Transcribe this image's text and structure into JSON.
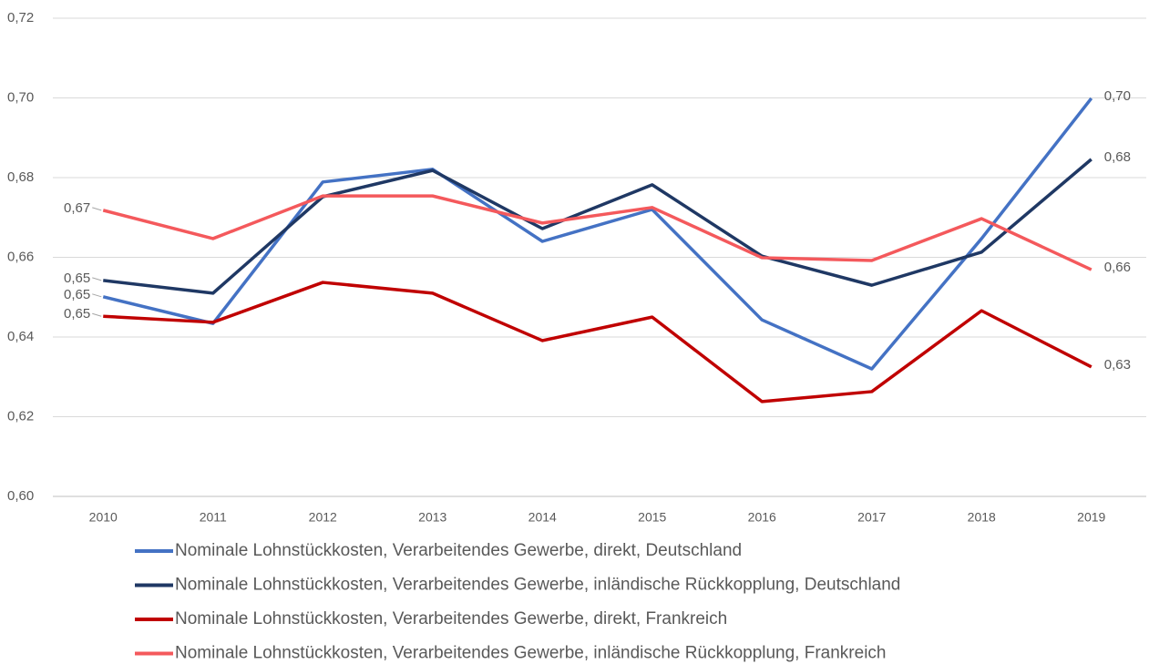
{
  "chart_data": {
    "type": "line",
    "categories": [
      "2010",
      "2011",
      "2012",
      "2013",
      "2014",
      "2015",
      "2016",
      "2017",
      "2018",
      "2019"
    ],
    "series": [
      {
        "name": "Nominale Lohnstückkosten, Verarbeitendes Gewerbe, direkt, Deutschland",
        "color": "#4472c4",
        "values": [
          0.6501,
          0.6434,
          0.6789,
          0.6821,
          0.664,
          0.672,
          0.6443,
          0.632,
          0.6647,
          0.6999
        ],
        "value_labels": [
          "0,65",
          null,
          null,
          null,
          null,
          null,
          null,
          null,
          null,
          "0,70"
        ]
      },
      {
        "name": "Nominale Lohnstückkosten, Verarbeitendes Gewerbe, inländische Rückkopplung,  Deutschland",
        "color": "#1f3864",
        "values": [
          0.6542,
          0.651,
          0.6752,
          0.6818,
          0.6672,
          0.6782,
          0.6603,
          0.653,
          0.6613,
          0.6846
        ],
        "value_labels": [
          "0,65",
          null,
          null,
          null,
          null,
          null,
          null,
          null,
          null,
          "0,68"
        ]
      },
      {
        "name": "Nominale Lohnstückkosten, Verarbeitendes Gewerbe, direkt, Frankreich",
        "color": "#c00000",
        "values": [
          0.6452,
          0.6437,
          0.6537,
          0.651,
          0.6391,
          0.645,
          0.6238,
          0.6263,
          0.6466,
          0.6325
        ],
        "value_labels": [
          "0,65",
          null,
          null,
          null,
          null,
          null,
          null,
          null,
          null,
          "0,63"
        ]
      },
      {
        "name": "Nominale Lohnstückkosten, Verarbeitendes Gewerbe, inländische Rückkopplung,  Frankreich",
        "color": "#f4595c",
        "values": [
          0.6718,
          0.6647,
          0.6754,
          0.6754,
          0.6686,
          0.6725,
          0.6599,
          0.6592,
          0.6697,
          0.6569
        ],
        "value_labels": [
          "0,67",
          null,
          null,
          null,
          null,
          null,
          null,
          null,
          null,
          "0,66"
        ]
      }
    ],
    "ylim": [
      0.6,
      0.72
    ],
    "yticks": [
      {
        "value": 0.6,
        "label": "0,60"
      },
      {
        "value": 0.62,
        "label": "0,62"
      },
      {
        "value": 0.64,
        "label": "0,64"
      },
      {
        "value": 0.66,
        "label": "0,66"
      },
      {
        "value": 0.68,
        "label": "0,68"
      },
      {
        "value": 0.7,
        "label": "0,70"
      },
      {
        "value": 0.72,
        "label": "0,72"
      }
    ],
    "grid": true
  }
}
